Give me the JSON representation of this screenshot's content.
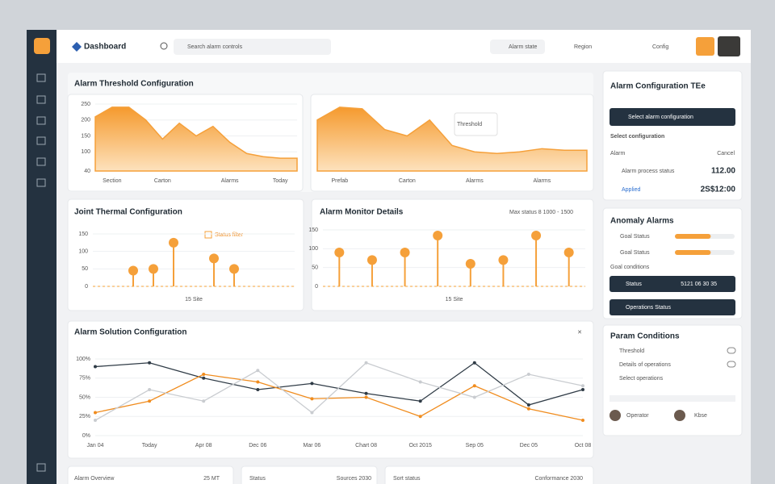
{
  "header": {
    "brand": "Dashboard",
    "search": "Search alarm controls",
    "menus": [
      "Alarm state",
      "Region",
      "Config"
    ]
  },
  "sections": {
    "threshold": "Alarm Threshold Configuration",
    "joint": "Joint Thermal Configuration",
    "monitor": "Alarm Monitor Details",
    "monitor_range": "Max status 8 1000 - 1500",
    "solution": "Alarm Solution Configuration",
    "tooltip": "Threshold",
    "legend": "Status filter"
  },
  "charts": [
    {
      "type": "area",
      "color": "#f5a03a",
      "categories": [
        null,
        "Section",
        null,
        null,
        "Carton",
        null,
        null,
        null,
        "Alarms",
        null,
        null,
        "Today",
        null
      ],
      "values": [
        210,
        240,
        240,
        200,
        140,
        190,
        150,
        180,
        130,
        95,
        85,
        80,
        80
      ],
      "ylim": [
        40,
        260
      ],
      "yticks": [
        40,
        100,
        150,
        200,
        250
      ]
    },
    {
      "type": "area",
      "color": "#f5a03a",
      "categories": [
        null,
        "Prefab",
        null,
        null,
        "Carton",
        null,
        null,
        "Alarms",
        null,
        null,
        "Alarms",
        null,
        null
      ],
      "values": [
        200,
        240,
        235,
        170,
        150,
        200,
        120,
        100,
        95,
        100,
        110,
        105,
        105
      ],
      "ylim": [
        40,
        260
      ],
      "yticks": []
    },
    {
      "type": "stem",
      "color": "#f5a03a",
      "xlabel": "15 Site",
      "x": [
        2,
        3,
        4,
        6,
        7
      ],
      "values": [
        45,
        50,
        125,
        80,
        50
      ],
      "xlim": [
        0,
        10
      ],
      "ylim": [
        0,
        150
      ],
      "yticks": [
        0,
        50,
        100,
        150
      ]
    },
    {
      "type": "stem",
      "color": "#f5a03a",
      "xlabel": "15 Site",
      "x": [
        1,
        2,
        3,
        4,
        5,
        6,
        7,
        8
      ],
      "values": [
        90,
        70,
        90,
        135,
        60,
        70,
        135,
        90
      ],
      "xlim": [
        0.5,
        8.5
      ],
      "ylim": [
        0,
        150
      ],
      "yticks": [
        0,
        50,
        100,
        150
      ]
    },
    {
      "type": "line",
      "categories": [
        "Jan 04",
        "Today",
        "Apr 08",
        "Dec 06",
        "Mar 06",
        "Chart 08",
        "Oct 2015",
        "Sep 05",
        "Dec 05",
        "Oct 08"
      ],
      "ylim": [
        0,
        100
      ],
      "yticks": [
        {
          "value": 0,
          "label": "0%"
        },
        {
          "value": 25,
          "label": "25%"
        },
        {
          "value": 50,
          "label": "50%"
        },
        {
          "value": 75,
          "label": "75%"
        },
        {
          "value": 100,
          "label": "100%"
        }
      ],
      "series": [
        {
          "color": "#2f3b46",
          "values": [
            90,
            95,
            75,
            60,
            68,
            55,
            45,
            95,
            40,
            60
          ]
        },
        {
          "color": "#f08c1e",
          "values": [
            30,
            45,
            80,
            70,
            48,
            50,
            25,
            65,
            35,
            20
          ]
        },
        {
          "color": "#c9ccd0",
          "values": [
            20,
            60,
            45,
            85,
            30,
            95,
            70,
            50,
            80,
            65
          ]
        }
      ]
    }
  ],
  "side": {
    "config": {
      "title": "Alarm Configuration TEe",
      "dropdown": "Select alarm configuration",
      "subtitle": "Select configuration",
      "col1": "Alarm",
      "col2": "Cancel",
      "rows": [
        {
          "label": "Alarm process status",
          "value": "112.00"
        },
        {
          "label": "Applied",
          "value": "2S$12:00"
        }
      ]
    },
    "alerts": {
      "title": "Anomaly Alarms",
      "bars": [
        {
          "label": "Goal Status",
          "value": 60
        },
        {
          "label": "Goal Status",
          "value": 60
        }
      ],
      "note": "Goal conditions",
      "buttons": [
        "Status",
        "Operations Status"
      ],
      "button_value": "5121 06 30 35"
    },
    "params": {
      "title": "Param Conditions",
      "items": [
        "Threshold",
        "Details of operations",
        "Select operations"
      ],
      "users": [
        "Operator",
        "Kbse"
      ]
    }
  },
  "footer": [
    "Alarm Overview",
    "25 MT",
    "Status",
    "Sources 2030",
    "Sort status",
    "Conformance 2030"
  ]
}
